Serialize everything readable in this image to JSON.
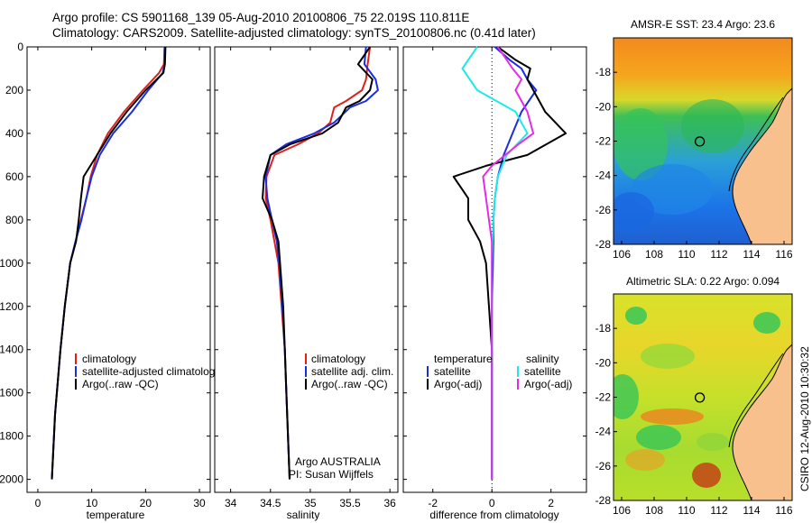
{
  "figure": {
    "title_line1": "Argo profile: CS 5901168_139 05-Aug-2010 20100806_75 22.019S 110.811E",
    "title_line2": "Climatology: CARS2009. Satellite-adjusted climatology: synTS_20100806.nc (0.41d later)",
    "credit": "CSIRO 12-Aug-2010 10:30:32"
  },
  "colors": {
    "climatology": "#e0201a",
    "satellite": "#1a2de0",
    "argo": "#000000",
    "salinity_satellite": "#22e8e8",
    "salinity_argo": "#e62be6",
    "land": "#f8c08c"
  },
  "chart_data": [
    {
      "type": "line",
      "id": "temperature",
      "xlabel": "temperature",
      "ylabel": "",
      "xlim": [
        -2,
        32
      ],
      "ylim": [
        2060,
        0
      ],
      "xticks": [
        0,
        10,
        20,
        30
      ],
      "yticks": [
        0,
        200,
        400,
        600,
        800,
        1000,
        1200,
        1400,
        1600,
        1800,
        2000
      ],
      "legend": [
        "climatology",
        "satellite-adjusted climatolog",
        "Argo(..raw -QC)"
      ],
      "series": [
        {
          "name": "climatology",
          "color": "climatology",
          "x": [
            23.5,
            23.4,
            22.5,
            19.5,
            16.0,
            13.0,
            11.0,
            9.8,
            9.0,
            8.0,
            7.0,
            6.0,
            5.0,
            4.2,
            3.2,
            2.6
          ],
          "y": [
            0,
            80,
            120,
            200,
            300,
            400,
            500,
            600,
            700,
            800,
            900,
            1000,
            1200,
            1400,
            1700,
            2000
          ]
        },
        {
          "name": "satellite-adjusted climatolog",
          "color": "satellite",
          "x": [
            23.6,
            23.5,
            23.2,
            20.5,
            17.5,
            14.0,
            11.5,
            10.0,
            9.0,
            8.1,
            7.0,
            6.0,
            5.0,
            4.2,
            3.2,
            2.6
          ],
          "y": [
            0,
            80,
            120,
            200,
            300,
            400,
            500,
            600,
            700,
            800,
            900,
            1000,
            1200,
            1400,
            1700,
            2000
          ]
        },
        {
          "name": "Argo(..raw -QC)",
          "color": "argo",
          "x": [
            23.7,
            23.6,
            23.3,
            20.0,
            16.5,
            13.5,
            11.0,
            8.5,
            8.0,
            7.6,
            7.1,
            6.0,
            5.0,
            4.2,
            3.2,
            2.6
          ],
          "y": [
            0,
            80,
            120,
            200,
            300,
            400,
            500,
            600,
            700,
            800,
            900,
            1000,
            1200,
            1400,
            1700,
            2000
          ]
        }
      ]
    },
    {
      "type": "line",
      "id": "salinity",
      "xlabel": "salinity",
      "ylabel": "",
      "xlim": [
        33.8,
        36.1
      ],
      "ylim": [
        2060,
        0
      ],
      "xticks": [
        34,
        34.5,
        35,
        35.5,
        36
      ],
      "legend": [
        "climatology",
        "satellite adj. clim.",
        "Argo(..raw -QC)"
      ],
      "annotation": [
        "Argo AUSTRALIA",
        "PI: Susan Wijffels"
      ],
      "series": [
        {
          "name": "climatology",
          "color": "climatology",
          "x": [
            35.75,
            35.72,
            35.7,
            35.65,
            35.45,
            35.3,
            35.25,
            35.1,
            34.85,
            34.55,
            34.45,
            34.44,
            34.5,
            34.55,
            34.6,
            34.64,
            34.68,
            34.7,
            34.72,
            34.74
          ],
          "y": [
            0,
            80,
            150,
            200,
            250,
            280,
            350,
            400,
            450,
            500,
            600,
            700,
            800,
            900,
            1000,
            1200,
            1400,
            1600,
            1800,
            2000
          ]
        },
        {
          "name": "satellite adj. clim.",
          "color": "satellite",
          "x": [
            35.7,
            35.68,
            35.82,
            35.85,
            35.7,
            35.5,
            35.3,
            35.05,
            34.7,
            34.5,
            34.44,
            34.46,
            34.52,
            34.58,
            34.61,
            34.65,
            34.68,
            34.7,
            34.72,
            34.74
          ],
          "y": [
            0,
            80,
            150,
            200,
            250,
            280,
            350,
            400,
            450,
            500,
            600,
            700,
            800,
            900,
            1000,
            1200,
            1400,
            1600,
            1800,
            2000
          ]
        },
        {
          "name": "Argo(..raw -QC)",
          "color": "argo",
          "x": [
            35.75,
            35.6,
            35.78,
            35.75,
            35.62,
            35.45,
            35.35,
            35.15,
            34.75,
            34.5,
            34.42,
            34.4,
            34.52,
            34.6,
            34.62,
            34.66,
            34.68,
            34.7,
            34.72,
            34.74
          ],
          "y": [
            0,
            80,
            150,
            200,
            250,
            280,
            350,
            400,
            450,
            500,
            600,
            700,
            800,
            900,
            1000,
            1200,
            1400,
            1600,
            1800,
            2000
          ]
        }
      ]
    },
    {
      "type": "line",
      "id": "difference",
      "xlabel": "difference from climatology",
      "ylabel": "",
      "xlim": [
        -3,
        3.2
      ],
      "ylim": [
        2060,
        0
      ],
      "xticks": [
        -2,
        0,
        2
      ],
      "legend_left": {
        "title": "temperature",
        "items": [
          "satellite",
          "Argo(-adj)"
        ]
      },
      "legend_right": {
        "title": "salinity",
        "items": [
          "satellite",
          "Argo(-adj)"
        ]
      },
      "series": [
        {
          "name": "temperature satellite",
          "color": "satellite",
          "x": [
            0.1,
            0.6,
            1.0,
            1.2,
            1.5,
            1.0,
            0.7,
            0.4,
            0.2,
            0.1,
            0.05,
            0.05,
            0.0,
            0.0,
            0.0
          ],
          "y": [
            0,
            60,
            100,
            150,
            200,
            300,
            400,
            500,
            600,
            700,
            800,
            900,
            1200,
            1600,
            2000
          ]
        },
        {
          "name": "temperature Argo(-adj)",
          "color": "argo",
          "x": [
            0.2,
            0.8,
            1.3,
            1.2,
            1.8,
            2.5,
            1.2,
            -0.2,
            -1.3,
            -0.8,
            -0.8,
            -0.4,
            -0.2,
            0.0,
            0.0
          ],
          "y": [
            0,
            60,
            100,
            150,
            300,
            400,
            500,
            550,
            600,
            700,
            800,
            900,
            1000,
            1400,
            2000
          ]
        },
        {
          "name": "salinity satellite",
          "color": "salinity_satellite",
          "x": [
            -0.5,
            -1.0,
            -0.5,
            0.8,
            1.2,
            0.5,
            0.2,
            0.1,
            0.05,
            0.0,
            0.0,
            0.0
          ],
          "y": [
            0,
            100,
            200,
            300,
            400,
            500,
            600,
            700,
            800,
            1000,
            1400,
            2000
          ]
        },
        {
          "name": "salinity Argo(-adj)",
          "color": "salinity_argo",
          "x": [
            0.2,
            0.7,
            1.0,
            0.8,
            1.2,
            1.4,
            0.9,
            0.0,
            -0.3,
            -0.2,
            0.0,
            0.0,
            0.0
          ],
          "y": [
            0,
            100,
            150,
            200,
            300,
            400,
            450,
            550,
            600,
            700,
            900,
            1400,
            2000
          ]
        }
      ]
    },
    {
      "type": "heatmap",
      "id": "sst_map",
      "title": "AMSR-E SST: 23.4 Argo: 23.6",
      "xlim": [
        105.5,
        116.5
      ],
      "ylim": [
        -28,
        -16
      ],
      "xticks": [
        106,
        108,
        110,
        112,
        114,
        116
      ],
      "yticks": [
        -18,
        -20,
        -22,
        -24,
        -26,
        -28
      ],
      "float_position": {
        "lon": 110.811,
        "lat": -22.019
      }
    },
    {
      "type": "heatmap",
      "id": "sla_map",
      "title": "Altimetric SLA: 0.22 Argo: 0.094",
      "xlim": [
        105.5,
        116.5
      ],
      "ylim": [
        -28,
        -16
      ],
      "xticks": [
        106,
        108,
        110,
        112,
        114,
        116
      ],
      "yticks": [
        -18,
        -20,
        -22,
        -24,
        -26,
        -28
      ],
      "float_position": {
        "lon": 110.811,
        "lat": -22.019
      }
    }
  ]
}
